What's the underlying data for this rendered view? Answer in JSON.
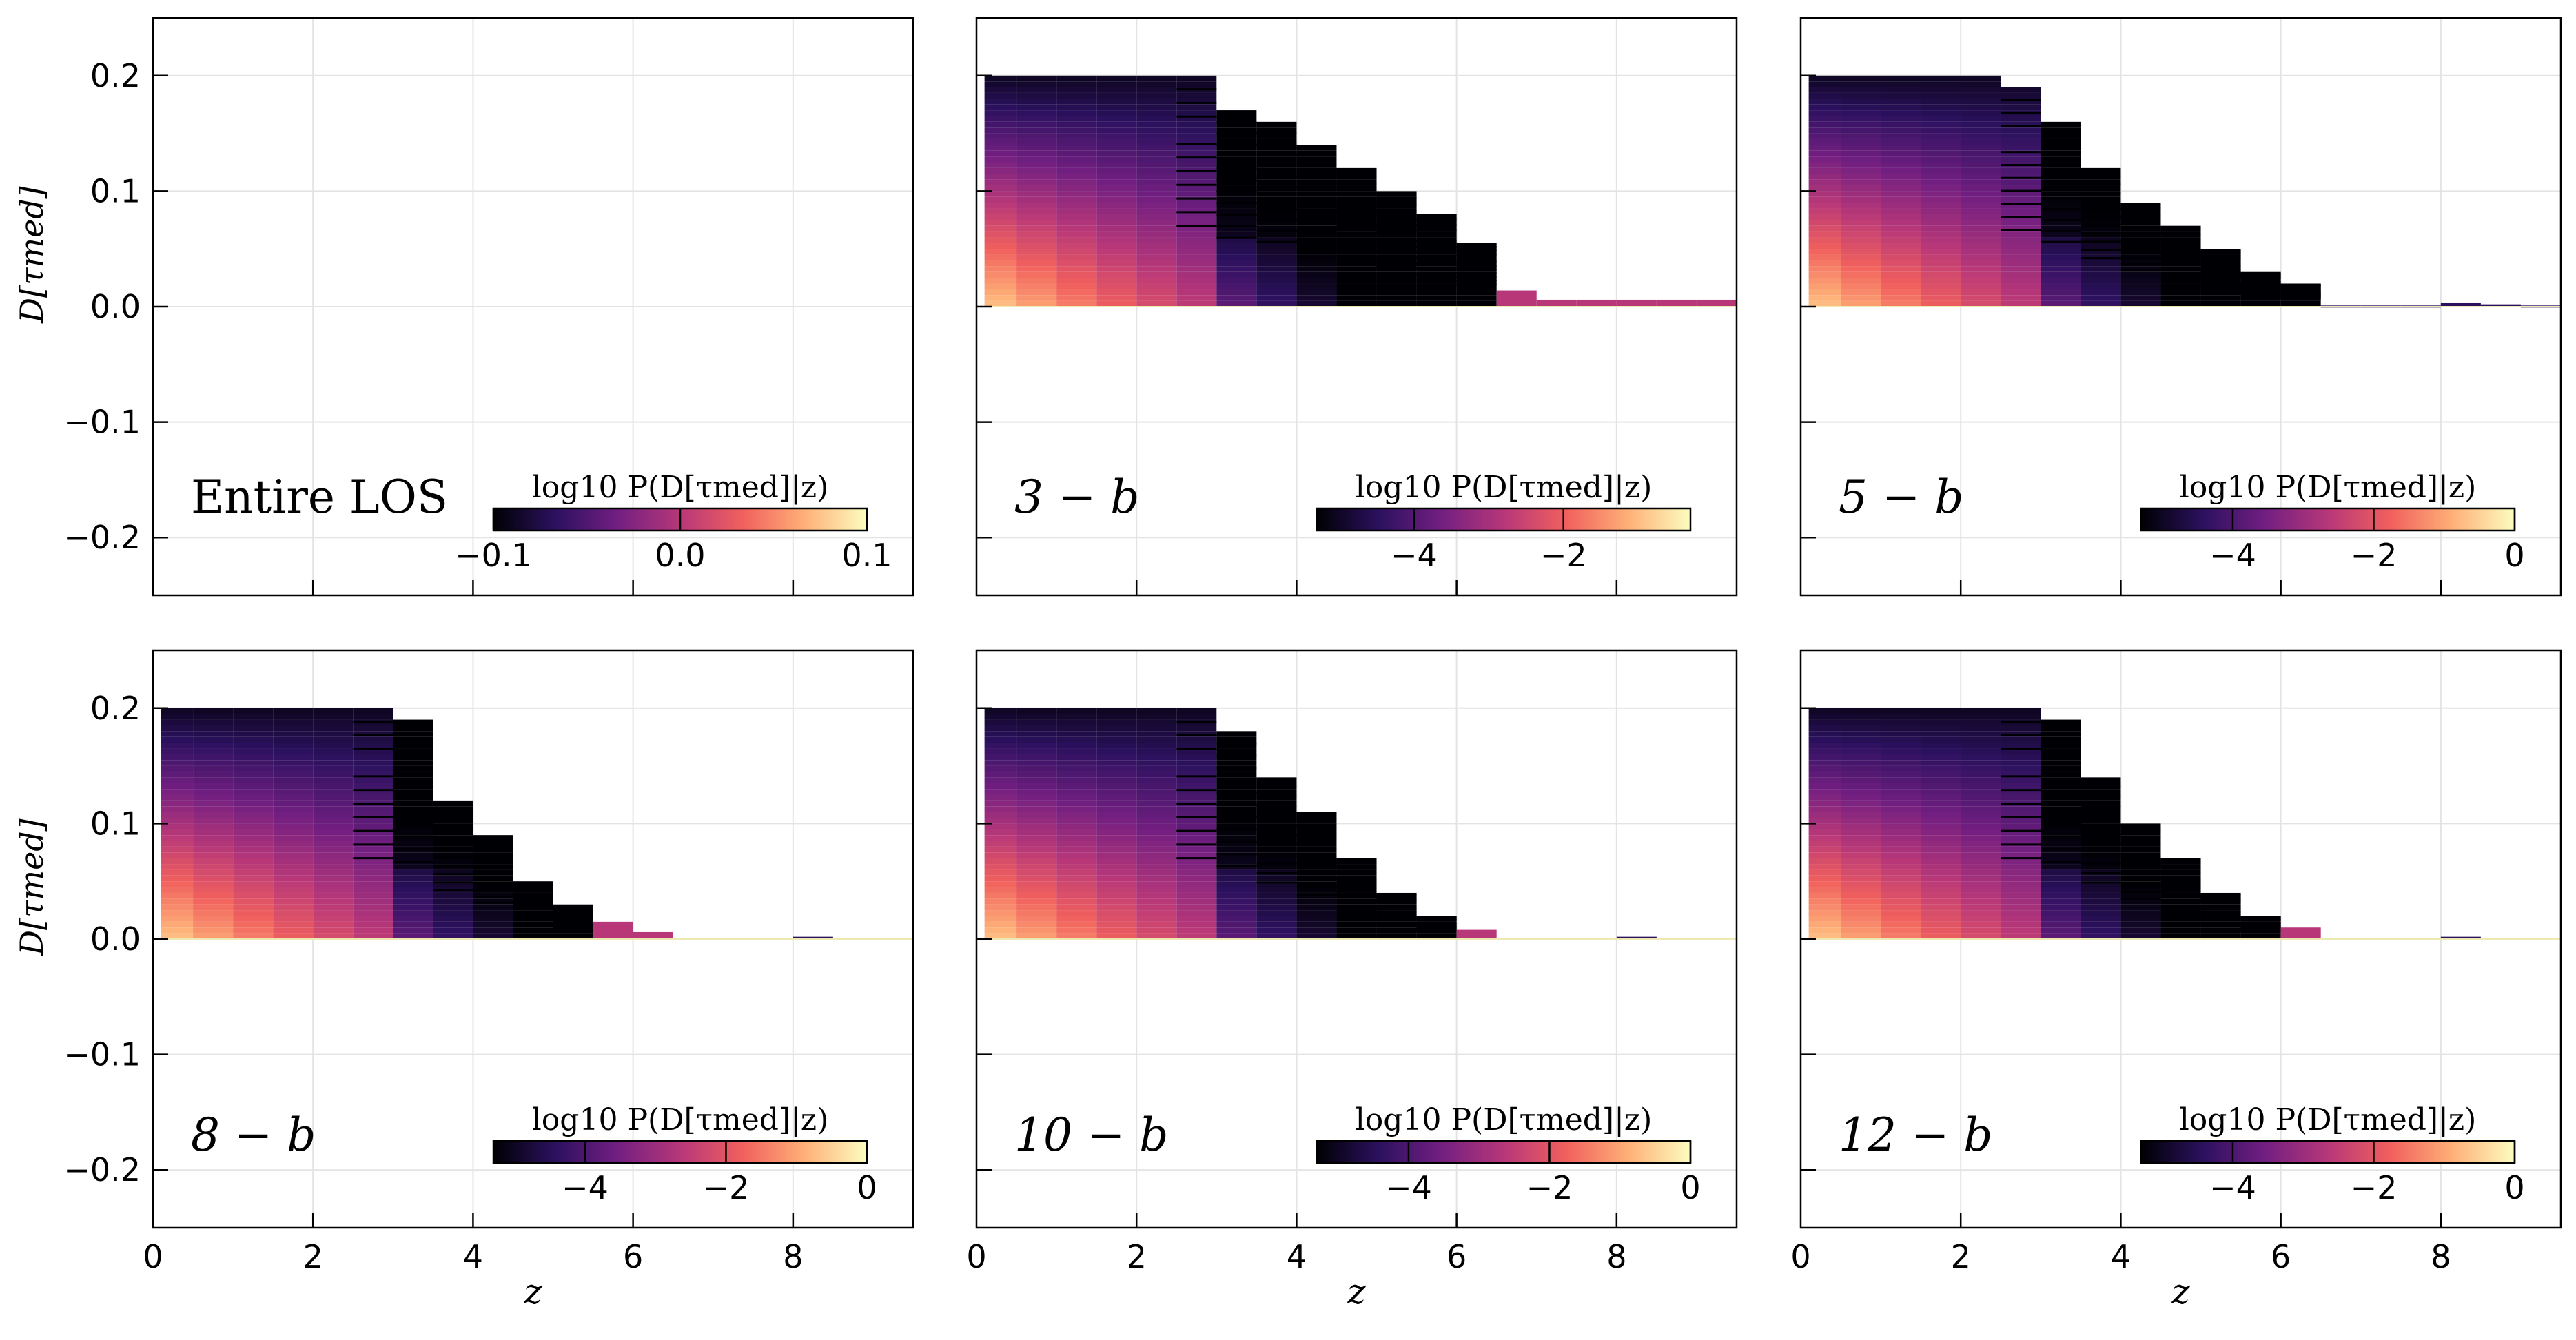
{
  "figure": {
    "panel_labels": [
      "Entire LOS",
      "3 − b",
      "5 − b",
      "8 − b",
      "10 − b",
      "12 − b"
    ],
    "ylabel": "D[τmed]",
    "xlabel": "z",
    "colorbar_label": "log10 P(D[τmed]|z)",
    "colormap": [
      "#000004",
      "#2c115f",
      "#721f81",
      "#b73779",
      "#f1605d",
      "#feb078",
      "#fcfdbf"
    ]
  },
  "chart_data": [
    {
      "type": "heatmap",
      "panel": "Entire LOS",
      "x_ticks": [
        "0",
        "2",
        "4",
        "6",
        "8"
      ],
      "y_ticks": [
        "0.2",
        "0.1",
        "0.0",
        "−0.1",
        "−0.2"
      ],
      "xlim": [
        0,
        9.5
      ],
      "ylim": [
        -0.25,
        0.25
      ],
      "grid": true,
      "colorbar": {
        "range": [
          -0.1,
          0.1
        ],
        "ticks": [
          "−0.1",
          "0.0",
          "0.1"
        ],
        "placement": "bottom-right"
      },
      "z_bin_edges": [],
      "column_max_d": [],
      "empty": true
    },
    {
      "type": "heatmap",
      "panel": "3 − b",
      "x_ticks": [
        "0",
        "2",
        "4",
        "6",
        "8"
      ],
      "y_ticks": [
        "0.2",
        "0.1",
        "0.0",
        "−0.1",
        "−0.2"
      ],
      "xlim": [
        0,
        9.5
      ],
      "ylim": [
        -0.25,
        0.25
      ],
      "grid": true,
      "colorbar": {
        "range": [
          -5.3,
          -0.3
        ],
        "ticks": [
          "−4",
          "−2"
        ],
        "placement": "bottom-right"
      },
      "z_bin_edges": [
        0.1,
        0.5,
        1.0,
        1.5,
        2.0,
        2.5,
        3.0,
        3.5,
        4.0,
        4.5,
        5.0,
        5.5,
        6.0,
        6.5,
        7.0,
        7.5,
        8.0,
        8.5,
        9.0,
        9.5
      ],
      "column_max_d": [
        0.2,
        0.2,
        0.2,
        0.2,
        0.2,
        0.2,
        0.17,
        0.16,
        0.14,
        0.12,
        0.1,
        0.08,
        0.055,
        0.014,
        0.006,
        0.006,
        0.006,
        0.006,
        0.006
      ]
    },
    {
      "type": "heatmap",
      "panel": "5 − b",
      "x_ticks": [
        "0",
        "2",
        "4",
        "6",
        "8"
      ],
      "y_ticks": [
        "0.2",
        "0.1",
        "0.0",
        "−0.1",
        "−0.2"
      ],
      "xlim": [
        0,
        9.5
      ],
      "ylim": [
        -0.25,
        0.25
      ],
      "grid": true,
      "colorbar": {
        "range": [
          -5.3,
          0.0
        ],
        "ticks": [
          "−4",
          "−2",
          "0"
        ],
        "placement": "bottom-right"
      },
      "z_bin_edges": [
        0.1,
        0.5,
        1.0,
        1.5,
        2.0,
        2.5,
        3.0,
        3.5,
        4.0,
        4.5,
        5.0,
        5.5,
        6.0,
        6.5,
        7.0,
        7.5,
        8.0,
        8.5,
        9.0,
        9.5
      ],
      "column_max_d": [
        0.2,
        0.2,
        0.2,
        0.2,
        0.2,
        0.19,
        0.16,
        0.12,
        0.09,
        0.07,
        0.05,
        0.03,
        0.02,
        0.001,
        0.001,
        0.001,
        0.003,
        0.002,
        0.001
      ]
    },
    {
      "type": "heatmap",
      "panel": "8 − b",
      "x_ticks": [
        "0",
        "2",
        "4",
        "6",
        "8"
      ],
      "y_ticks": [
        "0.2",
        "0.1",
        "0.0",
        "−0.1",
        "−0.2"
      ],
      "xlim": [
        0,
        9.5
      ],
      "ylim": [
        -0.25,
        0.25
      ],
      "grid": true,
      "colorbar": {
        "range": [
          -5.3,
          0.0
        ],
        "ticks": [
          "−4",
          "−2",
          "0"
        ],
        "placement": "bottom-right"
      },
      "z_bin_edges": [
        0.1,
        0.5,
        1.0,
        1.5,
        2.0,
        2.5,
        3.0,
        3.5,
        4.0,
        4.5,
        5.0,
        5.5,
        6.0,
        6.5,
        7.0,
        7.5,
        8.0,
        8.5,
        9.0,
        9.5
      ],
      "column_max_d": [
        0.2,
        0.2,
        0.2,
        0.2,
        0.2,
        0.2,
        0.19,
        0.12,
        0.09,
        0.05,
        0.03,
        0.015,
        0.006,
        0.001,
        0.001,
        0.001,
        0.002,
        0.001,
        0.001
      ]
    },
    {
      "type": "heatmap",
      "panel": "10 − b",
      "x_ticks": [
        "0",
        "2",
        "4",
        "6",
        "8"
      ],
      "y_ticks": [
        "0.2",
        "0.1",
        "0.0",
        "−0.1",
        "−0.2"
      ],
      "xlim": [
        0,
        9.5
      ],
      "ylim": [
        -0.25,
        0.25
      ],
      "grid": true,
      "colorbar": {
        "range": [
          -5.3,
          0.0
        ],
        "ticks": [
          "−4",
          "−2",
          "0"
        ],
        "placement": "bottom-right"
      },
      "z_bin_edges": [
        0.1,
        0.5,
        1.0,
        1.5,
        2.0,
        2.5,
        3.0,
        3.5,
        4.0,
        4.5,
        5.0,
        5.5,
        6.0,
        6.5,
        7.0,
        7.5,
        8.0,
        8.5,
        9.0,
        9.5
      ],
      "column_max_d": [
        0.2,
        0.2,
        0.2,
        0.2,
        0.2,
        0.2,
        0.18,
        0.14,
        0.11,
        0.07,
        0.04,
        0.02,
        0.008,
        0.001,
        0.001,
        0.001,
        0.002,
        0.001,
        0.001
      ]
    },
    {
      "type": "heatmap",
      "panel": "12 − b",
      "x_ticks": [
        "0",
        "2",
        "4",
        "6",
        "8"
      ],
      "y_ticks": [
        "0.2",
        "0.1",
        "0.0",
        "−0.1",
        "−0.2"
      ],
      "xlim": [
        0,
        9.5
      ],
      "ylim": [
        -0.25,
        0.25
      ],
      "grid": true,
      "colorbar": {
        "range": [
          -5.3,
          0.0
        ],
        "ticks": [
          "−4",
          "−2",
          "0"
        ],
        "placement": "bottom-right"
      },
      "z_bin_edges": [
        0.1,
        0.5,
        1.0,
        1.5,
        2.0,
        2.5,
        3.0,
        3.5,
        4.0,
        4.5,
        5.0,
        5.5,
        6.0,
        6.5,
        7.0,
        7.5,
        8.0,
        8.5,
        9.0,
        9.5
      ],
      "column_max_d": [
        0.2,
        0.2,
        0.2,
        0.2,
        0.2,
        0.2,
        0.19,
        0.14,
        0.1,
        0.07,
        0.04,
        0.02,
        0.01,
        0.001,
        0.001,
        0.001,
        0.002,
        0.001,
        0.001
      ]
    }
  ]
}
